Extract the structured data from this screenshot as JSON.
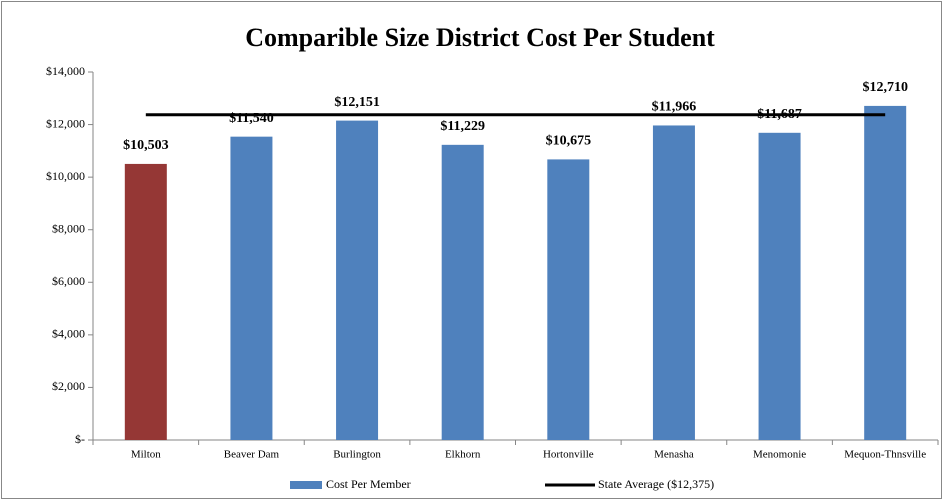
{
  "chart_data": {
    "type": "bar",
    "title": "Comparible Size District Cost Per Student",
    "categories": [
      "Milton",
      "Beaver Dam",
      "Burlington",
      "Elkhorn",
      "Hortonville",
      "Menasha",
      "Menomonie",
      "Mequon-Thnsville"
    ],
    "series": [
      {
        "name": "Cost Per Member",
        "color": "#4f81bd",
        "colors": [
          "#953735",
          "#4f81bd",
          "#4f81bd",
          "#4f81bd",
          "#4f81bd",
          "#4f81bd",
          "#4f81bd",
          "#4f81bd"
        ],
        "values": [
          10503,
          11540,
          12151,
          11229,
          10675,
          11966,
          11687,
          12710
        ],
        "value_labels": [
          "$10,503",
          "$11,540",
          "$12,151",
          "$11,229",
          "$10,675",
          "$11,966",
          "$11,687",
          "$12,710"
        ]
      },
      {
        "name": "State Average ($12,375)",
        "type": "line",
        "color": "#000000",
        "value": 12375
      }
    ],
    "ylim": [
      0,
      14000
    ],
    "yticks": [
      {
        "value": 0,
        "label": "$-"
      },
      {
        "value": 2000,
        "label": "$2,000"
      },
      {
        "value": 4000,
        "label": "$4,000"
      },
      {
        "value": 6000,
        "label": "$6,000"
      },
      {
        "value": 8000,
        "label": "$8,000"
      },
      {
        "value": 10000,
        "label": "$10,000"
      },
      {
        "value": 12000,
        "label": "$12,000"
      },
      {
        "value": 14000,
        "label": "$14,000"
      }
    ],
    "legend": "bottom"
  }
}
